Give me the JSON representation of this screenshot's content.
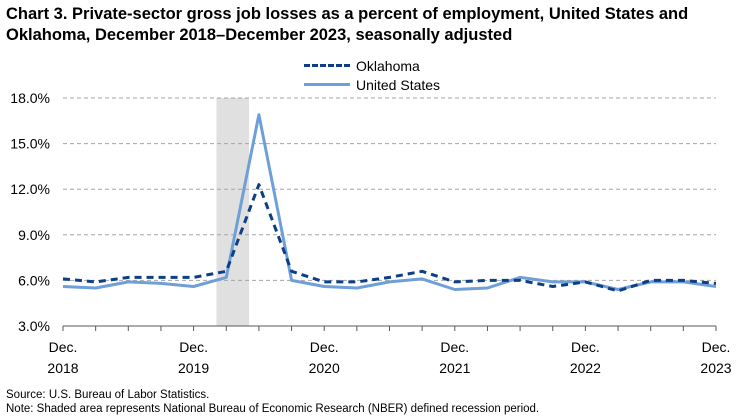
{
  "title": "Chart 3. Private-sector gross job losses as a percent of employment, United States and Oklahoma, December 2018–December 2023, seasonally adjusted",
  "source": "Source: U.S. Bureau of Labor Statistics.",
  "note": "Note: Shaded area represents National Bureau of Economic Research (NBER) defined recession period.",
  "chart_data": {
    "type": "line",
    "title": "Chart 3. Private-sector gross job losses as a percent of employment, United States and Oklahoma, December 2018–December 2023, seasonally adjusted",
    "xlabel": "",
    "ylabel": "",
    "x": [
      "Dec. 2018",
      "Mar. 2019",
      "Jun. 2019",
      "Sep. 2019",
      "Dec. 2019",
      "Mar. 2020",
      "Jun. 2020",
      "Sep. 2020",
      "Dec. 2020",
      "Mar. 2021",
      "Jun. 2021",
      "Sep. 2021",
      "Dec. 2021",
      "Mar. 2022",
      "Jun. 2022",
      "Sep. 2022",
      "Dec. 2022",
      "Mar. 2023",
      "Jun. 2023",
      "Sep. 2023",
      "Dec. 2023"
    ],
    "x_tick_labels": [
      {
        "line1": "Dec.",
        "line2": "2018",
        "index": 0
      },
      {
        "line1": "Dec.",
        "line2": "2019",
        "index": 4
      },
      {
        "line1": "Dec.",
        "line2": "2020",
        "index": 8
      },
      {
        "line1": "Dec.",
        "line2": "2021",
        "index": 12
      },
      {
        "line1": "Dec.",
        "line2": "2022",
        "index": 16
      },
      {
        "line1": "Dec.",
        "line2": "2023",
        "index": 20
      }
    ],
    "series": [
      {
        "name": "Oklahoma",
        "style": "dashed",
        "color": "#0c3f86",
        "values": [
          6.1,
          5.9,
          6.2,
          6.2,
          6.2,
          6.6,
          12.3,
          6.6,
          5.9,
          5.9,
          6.2,
          6.6,
          5.9,
          6.0,
          6.0,
          5.6,
          5.9,
          5.3,
          6.0,
          6.0,
          5.8
        ]
      },
      {
        "name": "United States",
        "style": "solid",
        "color": "#6f9fd8",
        "values": [
          5.6,
          5.5,
          5.9,
          5.8,
          5.6,
          6.2,
          16.9,
          6.0,
          5.6,
          5.5,
          5.9,
          6.1,
          5.4,
          5.5,
          6.2,
          5.9,
          5.9,
          5.4,
          5.9,
          5.9,
          5.6
        ]
      }
    ],
    "y_tick_labels": [
      "3.0%",
      "6.0%",
      "9.0%",
      "12.0%",
      "15.0%",
      "18.0%"
    ],
    "y_ticks": [
      3,
      6,
      9,
      12,
      15,
      18
    ],
    "ylim": [
      3,
      18
    ],
    "grid": "horizontal dashed",
    "legend": "top-center",
    "recession_shading": {
      "from_index": 4.7,
      "to_index": 5.7,
      "color": "#e0e0e0"
    }
  }
}
